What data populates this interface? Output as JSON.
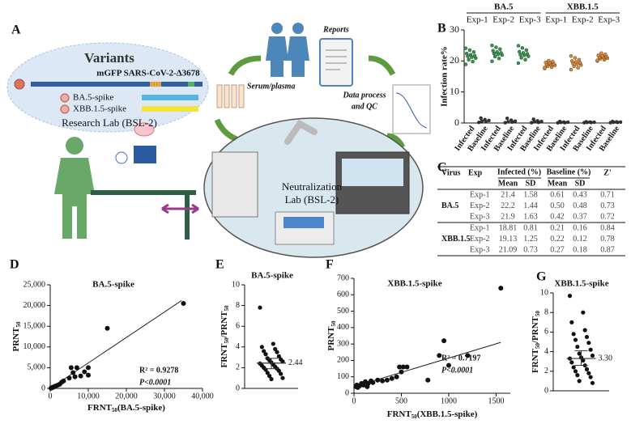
{
  "panel_labels": [
    "A",
    "B",
    "C",
    "D",
    "E",
    "F",
    "G"
  ],
  "diagram": {
    "variants_title": "Variants",
    "virus": "mGFP SARS-CoV-2-Δ3678",
    "spikes": [
      "BA.5-spike",
      "XBB.1.5-spike"
    ],
    "research_lab": "Research Lab (BSL-2)",
    "reports": "Reports",
    "serum": "Serum/plasma",
    "data_process": [
      "Data process",
      "and QC"
    ],
    "neutralization_lab": [
      "Neutralization",
      "Lab (BSL-2)"
    ]
  },
  "table": {
    "columns": [
      "Virus",
      "Exp",
      "Infected (%)",
      "Baseline (%)",
      "Z'"
    ],
    "subcolumns": [
      "Mean",
      "SD",
      "Mean",
      "SD"
    ],
    "groups": [
      {
        "virus": "BA.5",
        "rows": [
          [
            "Exp-1",
            "21.4",
            "1.58",
            "0.61",
            "0.43",
            "0.71"
          ],
          [
            "Exp-2",
            "22.2",
            "1.44",
            "0.50",
            "0.48",
            "0.73"
          ],
          [
            "Exp-3",
            "21.9",
            "1.63",
            "0.42",
            "0.37",
            "0.72"
          ]
        ]
      },
      {
        "virus": "XBB.1.5",
        "rows": [
          [
            "Exp-1",
            "18.81",
            "0.81",
            "0.21",
            "0.16",
            "0.84"
          ],
          [
            "Exp-2",
            "19.13",
            "1.25",
            "0.22",
            "0.12",
            "0.78"
          ],
          [
            "Exp-3",
            "21.09",
            "0.73",
            "0.27",
            "0.18",
            "0.87"
          ]
        ]
      }
    ]
  },
  "chart_data": [
    {
      "type": "strip",
      "y_label": "Infection rate%",
      "ylim": [
        0,
        30
      ],
      "yticks": [
        0,
        10,
        20,
        30
      ],
      "groups": [
        {
          "name": "BA.5",
          "experiments": [
            "Exp-1",
            "Exp-2",
            "Exp-3"
          ]
        },
        {
          "name": "XBB.1.5",
          "experiments": [
            "Exp-1",
            "Exp-2",
            "Exp-3"
          ]
        }
      ],
      "categories": [
        "Infected",
        "Baseline",
        "Infected",
        "Baseline",
        "Infected",
        "Baseline",
        "Infected",
        "Baseline",
        "Infected",
        "Baseline",
        "Infected",
        "Baseline"
      ],
      "colors": [
        "#2e9b48",
        "#333333",
        "#2e9b48",
        "#333333",
        "#2e9b48",
        "#333333",
        "#e8862c",
        "#333333",
        "#e8862c",
        "#333333",
        "#e8862c",
        "#333333"
      ],
      "values": [
        [
          18.9,
          19.8,
          20.4,
          20.9,
          21.2,
          21.5,
          21.7,
          22.0,
          22.4,
          22.9,
          23.5,
          24.1
        ],
        [
          0.2,
          0.4,
          0.6,
          0.8,
          1.1,
          1.6
        ],
        [
          19.9,
          20.8,
          21.4,
          21.9,
          22.1,
          22.4,
          22.6,
          22.9,
          23.3,
          23.8,
          24.4,
          25.0
        ],
        [
          0.1,
          0.3,
          0.4,
          0.6,
          0.9,
          1.5
        ],
        [
          19.3,
          20.4,
          21.0,
          21.5,
          21.8,
          22.0,
          22.3,
          22.6,
          23.0,
          23.5,
          24.2,
          24.9
        ],
        [
          0.1,
          0.2,
          0.4,
          0.5,
          0.7,
          1.2
        ],
        [
          17.6,
          18.0,
          18.3,
          18.6,
          18.8,
          18.9,
          19.1,
          19.3,
          19.5,
          19.8,
          20.1,
          17.9
        ],
        [
          0.05,
          0.1,
          0.2,
          0.25,
          0.3,
          0.5
        ],
        [
          17.2,
          17.8,
          18.3,
          18.7,
          19.0,
          19.2,
          19.4,
          19.7,
          20.0,
          20.4,
          21.0,
          21.6
        ],
        [
          0.1,
          0.15,
          0.2,
          0.25,
          0.3,
          0.4
        ],
        [
          20.0,
          20.4,
          20.7,
          20.9,
          21.1,
          21.2,
          21.4,
          21.6,
          21.8,
          22.1,
          22.5,
          20.2
        ],
        [
          0.1,
          0.2,
          0.25,
          0.3,
          0.35,
          0.5
        ]
      ]
    },
    {
      "type": "scatter",
      "title": "BA.5-spike",
      "x_label": [
        "FRNT",
        "50",
        "(BA.5-spike)"
      ],
      "y_label": [
        "PRNT",
        "50"
      ],
      "xlim": [
        0,
        40000
      ],
      "xticks": [
        0,
        {
          "value": 10000,
          "label": "10,000"
        },
        {
          "value": 20000,
          "label": "20,000"
        },
        {
          "value": 30000,
          "label": "30,000"
        },
        {
          "value": 40000,
          "label": "40,000"
        }
      ],
      "ylim": [
        0,
        25000
      ],
      "yticks": [
        0,
        {
          "value": 5000,
          "label": "5,000"
        },
        {
          "value": 10000,
          "label": "10,000"
        },
        {
          "value": 15000,
          "label": "15,000"
        },
        {
          "value": 20000,
          "label": "20,000"
        },
        {
          "value": 25000,
          "label": "25,000"
        }
      ],
      "x": [
        200,
        300,
        400,
        500,
        600,
        800,
        1000,
        1200,
        1500,
        2000,
        2500,
        3000,
        3500,
        5000,
        5500,
        6000,
        6500,
        7000,
        8000,
        9000,
        10000,
        10000,
        15000,
        35000
      ],
      "y": [
        50,
        100,
        150,
        200,
        250,
        300,
        400,
        500,
        600,
        800,
        1000,
        1500,
        1800,
        2500,
        5000,
        3800,
        2800,
        5000,
        3000,
        4000,
        3200,
        5000,
        14500,
        20500
      ],
      "color": "#111111",
      "trend_line": {
        "x": [
          0,
          34500
        ],
        "y": [
          0,
          21200
        ]
      },
      "annotations": [
        "R² = 0.9278",
        "P<0.0001"
      ]
    },
    {
      "type": "strip",
      "title": "BA.5-spike",
      "y_label": [
        "FRNT",
        "50",
        "/PRNT",
        "50"
      ],
      "ylim": [
        0,
        10
      ],
      "yticks": [
        0,
        2,
        4,
        6,
        8,
        10
      ],
      "values": [
        7.8,
        4.3,
        4.0,
        3.8,
        3.6,
        3.5,
        3.3,
        3.1,
        2.9,
        2.8,
        2.7,
        2.6,
        2.5,
        2.4,
        2.3,
        2.2,
        2.1,
        2.0,
        1.9,
        1.8,
        1.7,
        1.5,
        1.4,
        1.2,
        1.0,
        0.9
      ],
      "color": "#111111",
      "median": 2.44,
      "error_range": [
        1.9,
        2.9
      ]
    },
    {
      "type": "scatter",
      "title": "XBB.1.5-spike",
      "x_label": [
        "FRNT",
        "50",
        "(XBB.1.5-spike)"
      ],
      "y_label": [
        "PRNT",
        "50"
      ],
      "xlim": [
        0,
        1650
      ],
      "xticks": [
        0,
        500,
        1000,
        1500
      ],
      "ylim": [
        0,
        700
      ],
      "yticks": [
        0,
        100,
        200,
        300,
        400,
        500,
        600,
        700
      ],
      "x": [
        20,
        30,
        40,
        60,
        80,
        100,
        120,
        140,
        150,
        180,
        200,
        250,
        300,
        350,
        400,
        450,
        480,
        500,
        520,
        560,
        780,
        900,
        950,
        1000,
        1200,
        1550
      ],
      "y": [
        40,
        50,
        35,
        45,
        60,
        50,
        70,
        40,
        60,
        75,
        65,
        80,
        75,
        80,
        90,
        100,
        160,
        130,
        160,
        160,
        80,
        230,
        320,
        170,
        230,
        640
      ],
      "color": "#111111",
      "trend_line": {
        "x": [
          0,
          1550
        ],
        "y": [
          40,
          310
        ]
      },
      "annotations": [
        "R² = 0.7197",
        "P<0.0001"
      ]
    },
    {
      "type": "strip",
      "title": "XBB.1.5-spike",
      "y_label": [
        "FRNT",
        "50",
        "/PRNT",
        "50"
      ],
      "ylim": [
        0,
        10
      ],
      "yticks": [
        0,
        2,
        4,
        6,
        8,
        10
      ],
      "values": [
        9.7,
        8.0,
        7.0,
        6.2,
        5.8,
        5.5,
        5.2,
        4.9,
        4.5,
        4.2,
        3.8,
        3.6,
        3.4,
        3.3,
        3.1,
        2.9,
        2.6,
        2.4,
        2.2,
        2.0,
        1.8,
        1.6,
        1.4,
        1.0,
        0.8
      ],
      "color": "#111111",
      "median": 3.3,
      "median_label": "3.30",
      "error_range": [
        2.6,
        4.1
      ]
    }
  ]
}
